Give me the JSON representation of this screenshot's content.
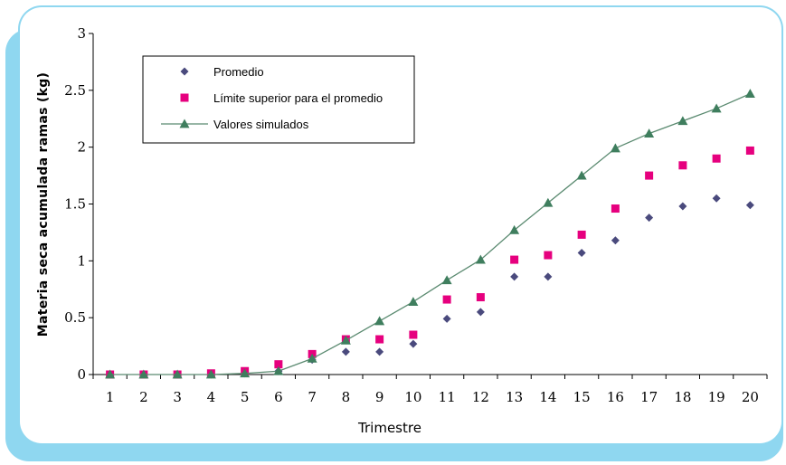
{
  "chart_data": {
    "type": "line",
    "title": "",
    "xlabel": "Trimestre",
    "ylabel": "Materia seca acumulada ramas (kg)",
    "x": [
      1,
      2,
      3,
      4,
      5,
      6,
      7,
      8,
      9,
      10,
      11,
      12,
      13,
      14,
      15,
      16,
      17,
      18,
      19,
      20
    ],
    "ylim": [
      0,
      3
    ],
    "yticks": [
      0,
      0.5,
      1,
      1.5,
      2,
      2.5,
      3
    ],
    "ytick_labels": [
      "0",
      "0.5",
      "1",
      "1.5",
      "2",
      "2.5",
      "3"
    ],
    "grid": false,
    "legend_position": "top-left",
    "series": [
      {
        "name": "Promedio",
        "style": "markers",
        "marker": "diamond",
        "color": "#4a4a7d",
        "values": [
          0,
          0,
          0,
          0,
          0.01,
          0.03,
          0.13,
          0.2,
          0.2,
          0.27,
          0.49,
          0.55,
          0.86,
          0.86,
          1.07,
          1.18,
          1.38,
          1.48,
          1.55,
          1.49
        ]
      },
      {
        "name": "Límite superior para el promedio",
        "style": "markers",
        "marker": "square",
        "color": "#e6007e",
        "values": [
          0,
          0,
          0,
          0.01,
          0.03,
          0.09,
          0.18,
          0.31,
          0.31,
          0.35,
          0.66,
          0.68,
          1.01,
          1.05,
          1.23,
          1.46,
          1.75,
          1.84,
          1.9,
          1.97
        ]
      },
      {
        "name": "Valores simulados",
        "style": "line-markers",
        "marker": "triangle",
        "color": "#3f7e5e",
        "line_color": "#5a8a70",
        "values": [
          0,
          0,
          0,
          0,
          0.01,
          0.03,
          0.14,
          0.3,
          0.47,
          0.64,
          0.83,
          1.01,
          1.27,
          1.51,
          1.75,
          1.99,
          2.12,
          2.23,
          2.34,
          2.47
        ]
      }
    ]
  }
}
